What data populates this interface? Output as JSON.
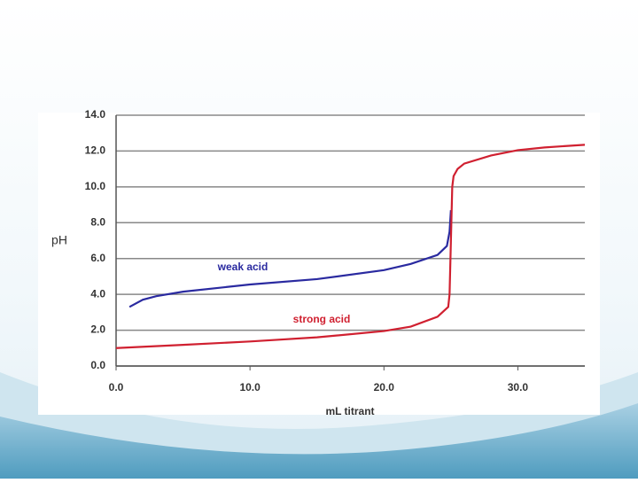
{
  "chart_data": {
    "type": "line",
    "xlabel": "mL titrant",
    "ylabel": "pH",
    "xlim": [
      0,
      35
    ],
    "ylim": [
      0,
      14
    ],
    "xticks": [
      {
        "value": 0,
        "label": "0.0"
      },
      {
        "value": 10,
        "label": "10.0"
      },
      {
        "value": 20,
        "label": "20.0"
      },
      {
        "value": 30,
        "label": "30.0"
      }
    ],
    "yticks": [
      {
        "value": 0,
        "label": "0.0"
      },
      {
        "value": 2,
        "label": "2.0"
      },
      {
        "value": 4,
        "label": "4.0"
      },
      {
        "value": 6,
        "label": "6.0"
      },
      {
        "value": 8,
        "label": "8.0"
      },
      {
        "value": 10,
        "label": "10.0"
      },
      {
        "value": 12,
        "label": "12.0"
      },
      {
        "value": 14,
        "label": "14.0"
      }
    ],
    "grid": true,
    "series": [
      {
        "name": "weak acid",
        "color": "#2a2aa0",
        "x": [
          1,
          2,
          3,
          5,
          10,
          15,
          20,
          22,
          24,
          24.7,
          24.9,
          25
        ],
        "values": [
          3.3,
          3.7,
          3.9,
          4.15,
          4.55,
          4.85,
          5.35,
          5.7,
          6.2,
          6.7,
          7.5,
          8.7
        ]
      },
      {
        "name": "strong acid",
        "color": "#d02030",
        "x": [
          0,
          5,
          10,
          15,
          20,
          22,
          24,
          24.8,
          24.9,
          25,
          25.1,
          25.2,
          25.5,
          26,
          28,
          30,
          32,
          35
        ],
        "values": [
          1.0,
          1.18,
          1.37,
          1.6,
          1.95,
          2.2,
          2.75,
          3.3,
          4.0,
          7.0,
          10.0,
          10.6,
          11.0,
          11.3,
          11.75,
          12.05,
          12.2,
          12.35
        ]
      }
    ]
  }
}
